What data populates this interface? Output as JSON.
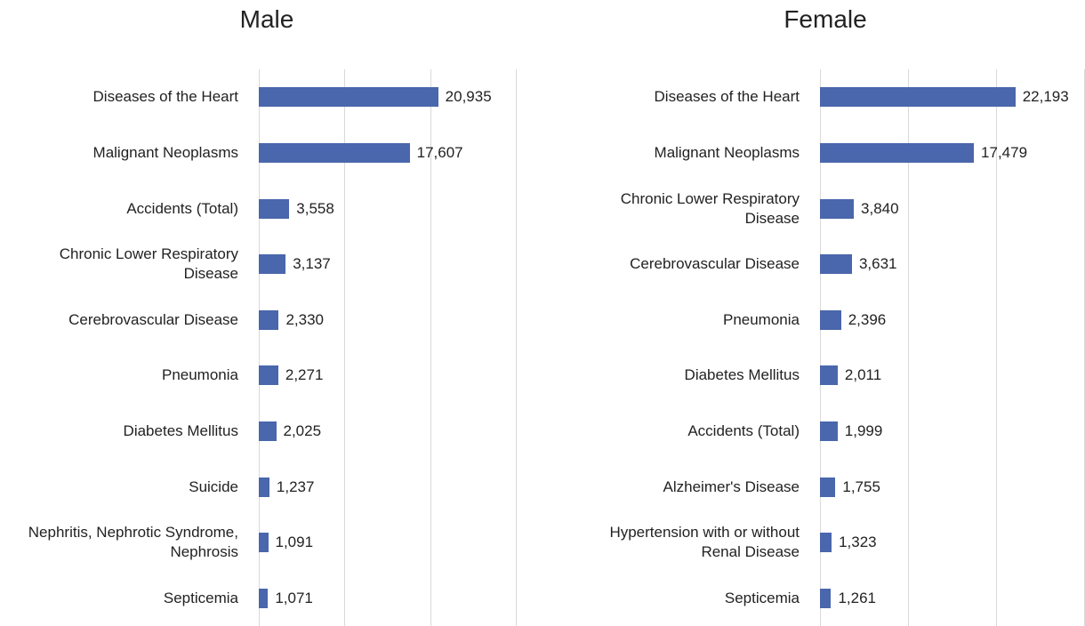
{
  "chart_data": [
    {
      "type": "bar",
      "orientation": "horizontal",
      "title": "Male",
      "color": "#4a66ac",
      "grid": true,
      "categories": [
        "Diseases of the Heart",
        "Malignant Neoplasms",
        "Accidents (Total)",
        "Chronic Lower Respiratory Disease",
        "Cerebrovascular Disease",
        "Pneumonia",
        "Diabetes Mellitus",
        "Suicide",
        "Nephritis, Nephrotic Syndrome, Nephrosis",
        "Septicemia"
      ],
      "values": [
        20935,
        17607,
        3558,
        3137,
        2330,
        2271,
        2025,
        1237,
        1091,
        1071
      ],
      "value_labels": [
        "20,935",
        "17,607",
        "3,558",
        "3,137",
        "2,330",
        "2,271",
        "2,025",
        "1,237",
        "1,091",
        "1,071"
      ],
      "xlim": [
        0,
        30000
      ],
      "xticks": [
        0,
        10000,
        20000,
        30000
      ]
    },
    {
      "type": "bar",
      "orientation": "horizontal",
      "title": "Female",
      "color": "#4a66ac",
      "grid": true,
      "categories": [
        "Diseases of the Heart",
        "Malignant Neoplasms",
        "Chronic Lower Respiratory Disease",
        "Cerebrovascular Disease",
        "Pneumonia",
        "Diabetes Mellitus",
        "Accidents (Total)",
        "Alzheimer's Disease",
        "Hypertension with or without Renal Disease",
        "Septicemia"
      ],
      "values": [
        22193,
        17479,
        3840,
        3631,
        2396,
        2011,
        1999,
        1755,
        1323,
        1261
      ],
      "value_labels": [
        "22,193",
        "17,479",
        "3,840",
        "3,631",
        "2,396",
        "2,011",
        "1,999",
        "1,755",
        "1,323",
        "1,261"
      ],
      "xlim": [
        0,
        30000
      ],
      "xticks": [
        0,
        10000,
        20000,
        30000
      ]
    }
  ]
}
